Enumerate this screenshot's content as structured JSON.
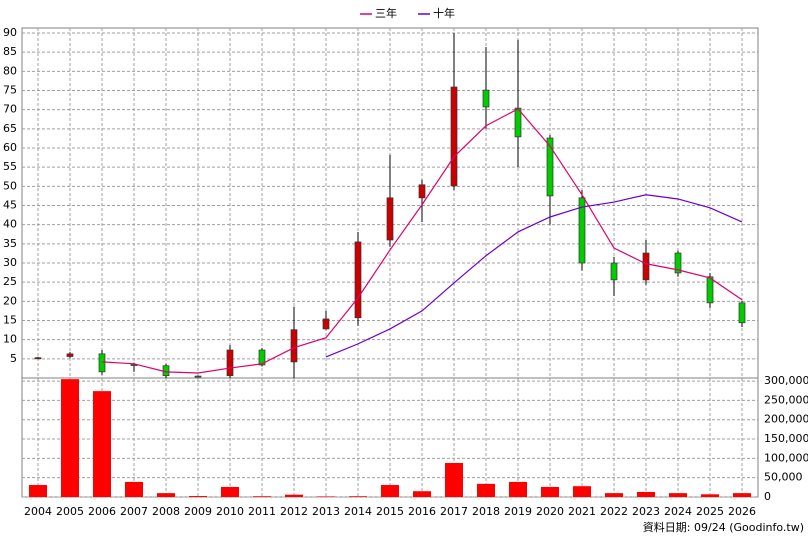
{
  "chart_data": [
    {
      "type": "candlestick",
      "categories": [
        "2004",
        "2005",
        "2006",
        "2007",
        "2008",
        "2009",
        "2010",
        "2011",
        "2012",
        "2013",
        "2014",
        "2015",
        "2016",
        "2017",
        "2018",
        "2019",
        "2020",
        "2021",
        "2022",
        "2023",
        "2024",
        "2025",
        "2026"
      ],
      "open": [
        5,
        5.6,
        6.3,
        3.5,
        3.2,
        0.5,
        0.6,
        7.3,
        4.2,
        12.8,
        15.7,
        36,
        47,
        50.1,
        75.1,
        70.4,
        62.6,
        47,
        30,
        25.6,
        32.6,
        26.4,
        19.6
      ],
      "high": [
        5.5,
        6.8,
        7.3,
        4,
        3.7,
        0.7,
        8.6,
        7.8,
        18.6,
        17.5,
        38.1,
        58.2,
        51.7,
        90,
        86.3,
        88.2,
        63.4,
        49,
        31.6,
        36,
        33.2,
        27.4,
        20.1
      ],
      "low": [
        5,
        5.2,
        0.8,
        1.6,
        0,
        0.2,
        0,
        3,
        0,
        12.6,
        13.6,
        34.2,
        40.7,
        49,
        65,
        55,
        40,
        28,
        21.4,
        24.3,
        26.4,
        18.3,
        13.3
      ],
      "close": [
        5.3,
        6.3,
        1.6,
        3.3,
        0.6,
        0.3,
        7.3,
        3.4,
        12.6,
        15.4,
        35.5,
        47,
        50.4,
        75.9,
        70.7,
        62.9,
        47.5,
        30,
        25.6,
        32.6,
        27.4,
        19.6,
        14.4
      ],
      "up_color": "#cc0000",
      "down_color": "#00cc00",
      "series": [
        {
          "name": "三年",
          "color": "#e0006e",
          "values": [
            null,
            null,
            4.2,
            3.7,
            1.6,
            1.3,
            2.6,
            3.7,
            7.9,
            10.5,
            20.9,
            33.4,
            45.2,
            57.7,
            65.8,
            70.2,
            60.5,
            47.8,
            33.9,
            29.8,
            28.2,
            26.1,
            20.4
          ]
        },
        {
          "name": "十年",
          "color": "#6a00d0",
          "values": [
            null,
            null,
            null,
            null,
            null,
            null,
            null,
            null,
            null,
            5.5,
            8.9,
            12.8,
            17.5,
            24.8,
            31.9,
            38.1,
            42,
            44.6,
            45.9,
            47.8,
            46.7,
            44.4,
            40.7
          ]
        }
      ],
      "ylim": [
        0,
        91.3
      ],
      "yticks": [
        5,
        10,
        15,
        20,
        25,
        30,
        35,
        40,
        45,
        50,
        55,
        60,
        65,
        70,
        75,
        80,
        85,
        90
      ],
      "grid": true
    },
    {
      "type": "bar",
      "values": [
        31000,
        305000,
        274000,
        39000,
        10000,
        2500,
        26000,
        2000,
        6000,
        1500,
        2000,
        31000,
        15000,
        88000,
        34000,
        39000,
        26000,
        28000,
        10000,
        13000,
        10000,
        7000,
        10000
      ],
      "color": "#ff0000",
      "ylim": [
        0,
        308000
      ],
      "yticks": [
        0,
        {
          "value": 50000,
          "label": "50,000"
        },
        {
          "value": 100000,
          "label": "100,000"
        },
        {
          "value": 150000,
          "label": "150,000"
        },
        {
          "value": 200000,
          "label": "200,000"
        },
        {
          "value": 250000,
          "label": "250,000"
        },
        {
          "value": 300000,
          "label": "300,000"
        }
      ],
      "grid": true,
      "footnote": "資料日期: 09/24 (Goodinfo.tw)"
    }
  ]
}
